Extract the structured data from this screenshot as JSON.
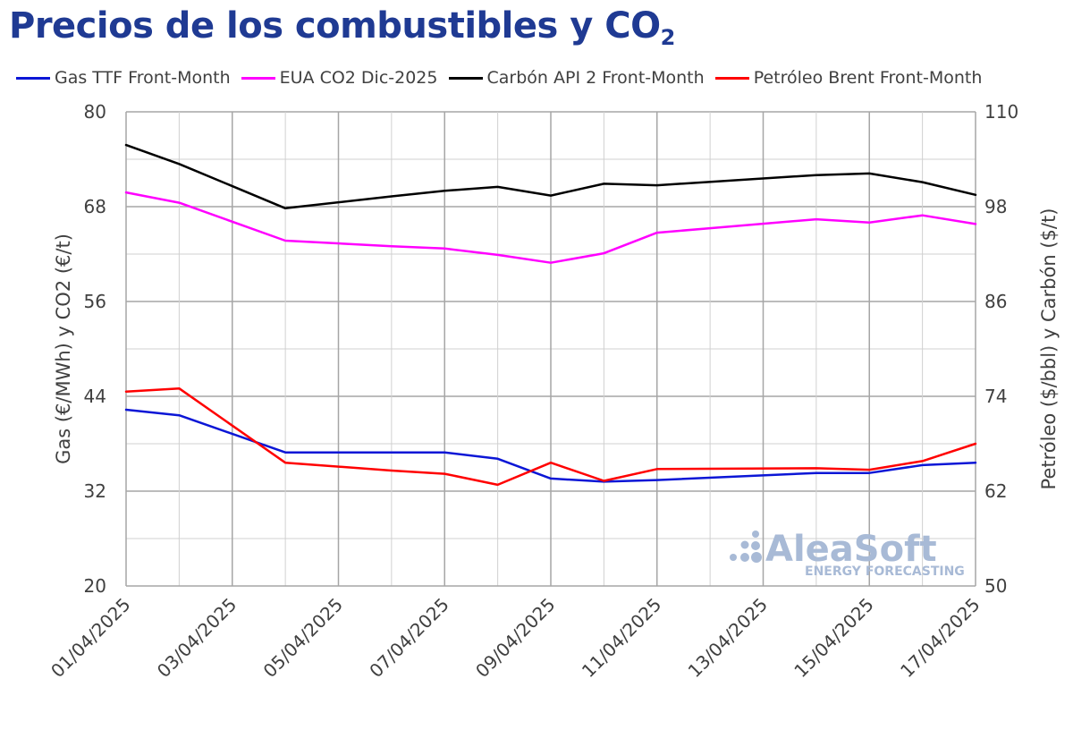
{
  "title": {
    "main": "Precios de los combustibles y CO",
    "sub": "2"
  },
  "watermark": {
    "brand": "AleaSoft",
    "tagline": "ENERGY FORECASTING"
  },
  "chart_data": {
    "type": "line",
    "title": "Precios de los combustibles y CO2",
    "xlabel": "",
    "ylabel": "Gas (€/MWh) y CO2 (€/t)",
    "ylabel_right": "Petróleo ($/bbl) y Carbón ($/t)",
    "ylim": [
      20,
      80
    ],
    "ylim_right": [
      50,
      110
    ],
    "yticks": [
      "20",
      "32",
      "44",
      "56",
      "68",
      "80"
    ],
    "yticks_right": [
      "50",
      "62",
      "74",
      "86",
      "98",
      "110"
    ],
    "x": [
      "01/04/2025",
      "02/04/2025",
      "03/04/2025",
      "04/04/2025",
      "05/04/2025",
      "06/04/2025",
      "07/04/2025",
      "08/04/2025",
      "09/04/2025",
      "10/04/2025",
      "11/04/2025",
      "12/04/2025",
      "13/04/2025",
      "14/04/2025",
      "15/04/2025",
      "16/04/2025",
      "17/04/2025"
    ],
    "xtick_labels": [
      "01/04/2025",
      "03/04/2025",
      "05/04/2025",
      "07/04/2025",
      "09/04/2025",
      "11/04/2025",
      "13/04/2025",
      "15/04/2025",
      "17/04/2025"
    ],
    "grid": true,
    "legend_position": "top",
    "series": [
      {
        "name": "Gas TTF Front-Month",
        "color": "#0b16d6",
        "axis": "left",
        "points": [
          [
            "01/04/2025",
            42.3
          ],
          [
            "02/04/2025",
            41.6
          ],
          [
            "04/04/2025",
            36.9
          ],
          [
            "06/04/2025",
            36.9
          ],
          [
            "07/04/2025",
            36.9
          ],
          [
            "08/04/2025",
            36.1
          ],
          [
            "09/04/2025",
            33.6
          ],
          [
            "10/04/2025",
            33.2
          ],
          [
            "11/04/2025",
            33.4
          ],
          [
            "14/04/2025",
            34.3
          ],
          [
            "15/04/2025",
            34.3
          ],
          [
            "16/04/2025",
            35.3
          ],
          [
            "17/04/2025",
            35.6
          ]
        ]
      },
      {
        "name": "EUA CO2 Dic-2025",
        "color": "#ff00ff",
        "axis": "left",
        "points": [
          [
            "01/04/2025",
            69.8
          ],
          [
            "02/04/2025",
            68.5
          ],
          [
            "04/04/2025",
            63.7
          ],
          [
            "06/04/2025",
            63.0
          ],
          [
            "07/04/2025",
            62.7
          ],
          [
            "08/04/2025",
            61.9
          ],
          [
            "09/04/2025",
            60.9
          ],
          [
            "10/04/2025",
            62.1
          ],
          [
            "11/04/2025",
            64.7
          ],
          [
            "14/04/2025",
            66.4
          ],
          [
            "15/04/2025",
            66.0
          ],
          [
            "16/04/2025",
            66.9
          ],
          [
            "17/04/2025",
            65.8
          ]
        ]
      },
      {
        "name": "Carbón API 2 Front-Month",
        "color": "#000000",
        "axis": "right",
        "points": [
          [
            "01/04/2025",
            105.8
          ],
          [
            "02/04/2025",
            103.4
          ],
          [
            "04/04/2025",
            97.8
          ],
          [
            "06/04/2025",
            99.3
          ],
          [
            "07/04/2025",
            100.0
          ],
          [
            "08/04/2025",
            100.5
          ],
          [
            "09/04/2025",
            99.4
          ],
          [
            "10/04/2025",
            100.9
          ],
          [
            "11/04/2025",
            100.7
          ],
          [
            "14/04/2025",
            102.0
          ],
          [
            "15/04/2025",
            102.2
          ],
          [
            "16/04/2025",
            101.1
          ],
          [
            "17/04/2025",
            99.5
          ]
        ]
      },
      {
        "name": "Petróleo Brent Front-Month",
        "color": "#ff0000",
        "axis": "right",
        "points": [
          [
            "01/04/2025",
            74.6
          ],
          [
            "02/04/2025",
            75.0
          ],
          [
            "04/04/2025",
            65.6
          ],
          [
            "06/04/2025",
            64.6
          ],
          [
            "07/04/2025",
            64.2
          ],
          [
            "08/04/2025",
            62.8
          ],
          [
            "09/04/2025",
            65.6
          ],
          [
            "10/04/2025",
            63.3
          ],
          [
            "11/04/2025",
            64.8
          ],
          [
            "14/04/2025",
            64.9
          ],
          [
            "15/04/2025",
            64.7
          ],
          [
            "16/04/2025",
            65.8
          ],
          [
            "17/04/2025",
            68.0
          ]
        ]
      }
    ]
  }
}
